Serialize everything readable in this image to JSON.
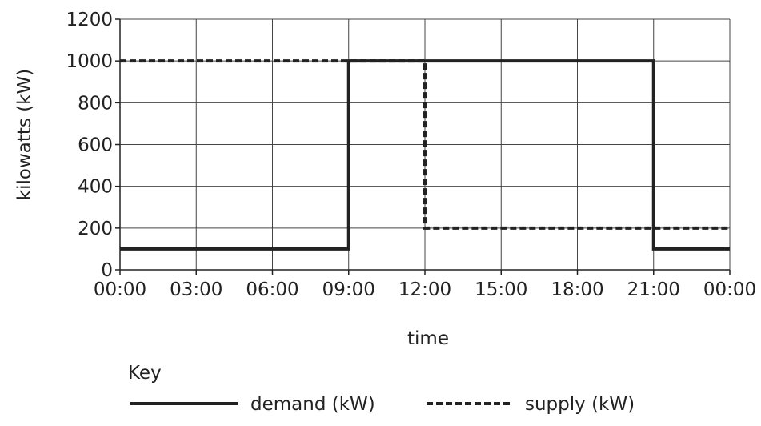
{
  "chart_data": {
    "type": "line",
    "xlabel": "time",
    "ylabel": "kilowatts (kW)",
    "x_ticks": [
      "00:00",
      "03:00",
      "06:00",
      "09:00",
      "12:00",
      "15:00",
      "18:00",
      "21:00",
      "00:00"
    ],
    "x_tick_hours": [
      0,
      3,
      6,
      9,
      12,
      15,
      18,
      21,
      24
    ],
    "y_ticks": [
      0,
      200,
      400,
      600,
      800,
      1000,
      1200
    ],
    "xlim": [
      0,
      24
    ],
    "ylim": [
      0,
      1200
    ],
    "grid": true,
    "legend_title": "Key",
    "legend_placement": "bottom",
    "series": [
      {
        "name": "demand (kW)",
        "style": "solid",
        "color": "#222222",
        "points": [
          {
            "x": 0,
            "y": 100
          },
          {
            "x": 9,
            "y": 100
          },
          {
            "x": 9,
            "y": 1000
          },
          {
            "x": 21,
            "y": 1000
          },
          {
            "x": 21,
            "y": 100
          },
          {
            "x": 24,
            "y": 100
          }
        ]
      },
      {
        "name": "supply (kW)",
        "style": "dashed",
        "color": "#222222",
        "points": [
          {
            "x": 0,
            "y": 1000
          },
          {
            "x": 12,
            "y": 1000
          },
          {
            "x": 12,
            "y": 200
          },
          {
            "x": 24,
            "y": 200
          }
        ]
      }
    ]
  }
}
